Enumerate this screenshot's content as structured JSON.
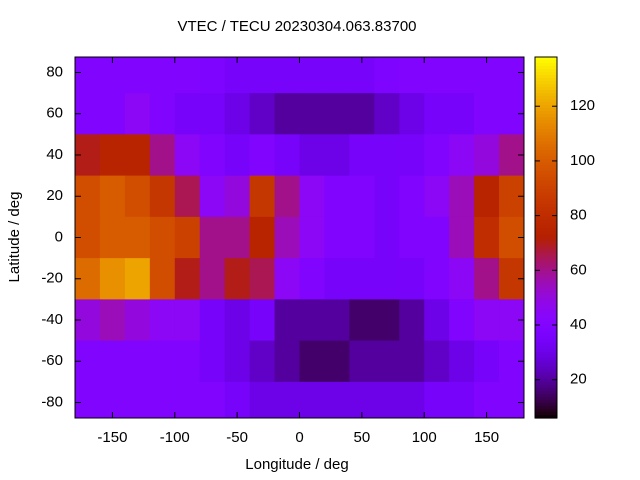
{
  "chart_data": {
    "type": "heatmap",
    "title": "VTEC / TECU 20230304.063.83700",
    "x_label": "Longitude / deg",
    "y_label": "Latitude / deg",
    "x": [
      -170,
      -150,
      -130,
      -110,
      -90,
      -70,
      -50,
      -30,
      -10,
      10,
      30,
      50,
      70,
      90,
      110,
      130,
      150,
      170
    ],
    "y": [
      80,
      60,
      40,
      20,
      0,
      -20,
      -40,
      -60,
      -80
    ],
    "values": [
      [
        40,
        40,
        40,
        40,
        40,
        38,
        35,
        35,
        35,
        35,
        35,
        35,
        38,
        40,
        40,
        40,
        40,
        40
      ],
      [
        40,
        40,
        45,
        40,
        35,
        35,
        30,
        25,
        20,
        20,
        20,
        20,
        25,
        30,
        35,
        35,
        40,
        40
      ],
      [
        70,
        75,
        75,
        60,
        45,
        40,
        35,
        40,
        35,
        30,
        30,
        35,
        35,
        35,
        40,
        45,
        50,
        60
      ],
      [
        95,
        100,
        95,
        85,
        65,
        45,
        50,
        85,
        60,
        45,
        40,
        40,
        35,
        40,
        45,
        55,
        75,
        90
      ],
      [
        95,
        100,
        100,
        95,
        90,
        60,
        60,
        75,
        55,
        45,
        40,
        40,
        35,
        40,
        40,
        55,
        80,
        95
      ],
      [
        105,
        115,
        120,
        95,
        70,
        60,
        70,
        65,
        45,
        40,
        35,
        35,
        35,
        35,
        40,
        45,
        60,
        85
      ],
      [
        50,
        55,
        50,
        45,
        45,
        35,
        30,
        35,
        20,
        20,
        20,
        15,
        15,
        20,
        30,
        40,
        45,
        45
      ],
      [
        40,
        40,
        40,
        40,
        40,
        35,
        30,
        25,
        20,
        15,
        15,
        20,
        20,
        20,
        25,
        30,
        35,
        40
      ],
      [
        40,
        40,
        40,
        40,
        40,
        40,
        35,
        30,
        30,
        30,
        30,
        30,
        30,
        30,
        35,
        35,
        40,
        40
      ]
    ],
    "cell_size": 20,
    "xlim": [
      -180,
      180
    ],
    "ylim": [
      -87.5,
      87.5
    ],
    "zlim": [
      6,
      138
    ],
    "xticks": [
      -150,
      -100,
      -50,
      0,
      50,
      100,
      150
    ],
    "yticks": [
      -80,
      -60,
      -40,
      -20,
      0,
      20,
      40,
      60,
      80
    ],
    "zticks": [
      20,
      40,
      60,
      80,
      100,
      120
    ],
    "palette": "gnuplot"
  }
}
